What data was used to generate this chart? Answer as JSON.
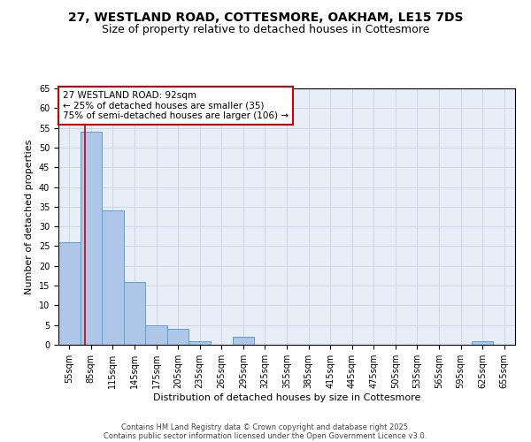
{
  "title": "27, WESTLAND ROAD, COTTESMORE, OAKHAM, LE15 7DS",
  "subtitle": "Size of property relative to detached houses in Cottesmore",
  "xlabel": "Distribution of detached houses by size in Cottesmore",
  "ylabel": "Number of detached properties",
  "bar_edges": [
    55,
    85,
    115,
    145,
    175,
    205,
    235,
    265,
    295,
    325,
    355,
    385,
    415,
    445,
    475,
    505,
    535,
    565,
    595,
    625,
    655
  ],
  "bar_values": [
    26,
    54,
    34,
    16,
    5,
    4,
    1,
    0,
    2,
    0,
    0,
    0,
    0,
    0,
    0,
    0,
    0,
    0,
    0,
    1,
    0
  ],
  "bar_color": "#aec6e8",
  "bar_edge_color": "#5a9fd4",
  "property_size": 92,
  "red_line_color": "#cc0000",
  "annotation_line1": "27 WESTLAND ROAD: 92sqm",
  "annotation_line2": "← 25% of detached houses are smaller (35)",
  "annotation_line3": "75% of semi-detached houses are larger (106) →",
  "annotation_box_color": "#ffffff",
  "annotation_box_edge_color": "#cc0000",
  "ylim": [
    0,
    65
  ],
  "yticks": [
    0,
    5,
    10,
    15,
    20,
    25,
    30,
    35,
    40,
    45,
    50,
    55,
    60,
    65
  ],
  "grid_color": "#cdd6e8",
  "background_color": "#e8eef8",
  "footer_line1": "Contains HM Land Registry data © Crown copyright and database right 2025.",
  "footer_line2": "Contains public sector information licensed under the Open Government Licence v3.0.",
  "title_fontsize": 10,
  "subtitle_fontsize": 9,
  "axis_label_fontsize": 8,
  "tick_fontsize": 7,
  "annotation_fontsize": 7.5,
  "footer_fontsize": 6
}
